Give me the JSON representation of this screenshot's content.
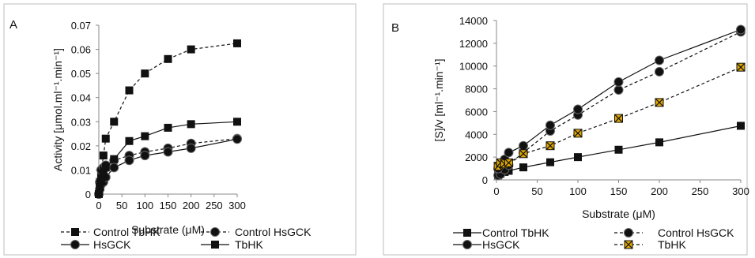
{
  "chart_data": [
    {
      "panel_label": "A",
      "type": "line",
      "xlabel": "Substrate (μM)",
      "ylabel": "Activity [μmol.ml⁻¹.min⁻¹]",
      "xlim": [
        0,
        300
      ],
      "ylim": [
        0,
        0.07
      ],
      "xticks": [
        "0",
        "50",
        "100",
        "150",
        "200",
        "250",
        "300"
      ],
      "yticks": [
        "0",
        "0.01",
        "0.02",
        "0.03",
        "0.04",
        "0.05",
        "0.06",
        "0.07"
      ],
      "grid": false,
      "legend": "bottom",
      "series": [
        {
          "name": "Control TbHK",
          "marker": "square",
          "line": "dashed",
          "color": "#111111",
          "x": [
            0,
            2,
            5,
            10,
            15,
            33,
            66,
            100,
            150,
            200,
            300
          ],
          "y": [
            0,
            0.005,
            0.009,
            0.016,
            0.023,
            0.03,
            0.043,
            0.05,
            0.056,
            0.06,
            0.0625
          ]
        },
        {
          "name": "Control HsGCK",
          "marker": "circle",
          "line": "dashed",
          "color": "#111111",
          "x": [
            0,
            2,
            5,
            10,
            15,
            33,
            66,
            100,
            150,
            200,
            300
          ],
          "y": [
            0,
            0.005,
            0.01,
            0.011,
            0.012,
            0.014,
            0.016,
            0.0175,
            0.019,
            0.021,
            0.023
          ]
        },
        {
          "name": "HsGCK",
          "marker": "circle",
          "line": "solid",
          "color": "#111111",
          "x": [
            0,
            2,
            5,
            10,
            15,
            33,
            66,
            100,
            150,
            200,
            300
          ],
          "y": [
            0,
            0.002,
            0.004,
            0.005,
            0.007,
            0.011,
            0.014,
            0.016,
            0.0175,
            0.019,
            0.0228
          ]
        },
        {
          "name": "TbHK",
          "marker": "square",
          "line": "solid",
          "color": "#111111",
          "x": [
            0,
            2,
            5,
            10,
            15,
            33,
            66,
            100,
            150,
            200,
            300
          ],
          "y": [
            0,
            0.003,
            0.006,
            0.009,
            0.011,
            0.0145,
            0.022,
            0.024,
            0.0275,
            0.029,
            0.03
          ]
        }
      ]
    },
    {
      "panel_label": "B",
      "type": "line",
      "xlabel": "Substrate (μM)",
      "ylabel": "[S]/v [ml⁻¹.min⁻¹]",
      "xlim": [
        0,
        300
      ],
      "ylim": [
        0,
        14000
      ],
      "xticks": [
        "0",
        "50",
        "100",
        "150",
        "200",
        "250",
        "300"
      ],
      "yticks": [
        "0",
        "2000",
        "4000",
        "6000",
        "8000",
        "10000",
        "12000",
        "14000"
      ],
      "grid": false,
      "legend": "bottom",
      "series": [
        {
          "name": "Control TbHK",
          "marker": "square",
          "line": "solid",
          "color": "#111111",
          "x": [
            2,
            5,
            10,
            15,
            33,
            66,
            100,
            150,
            200,
            300
          ],
          "y": [
            400,
            550,
            700,
            800,
            1100,
            1550,
            2000,
            2650,
            3300,
            4750
          ]
        },
        {
          "name": "Control HsGCK",
          "marker": "circle",
          "line": "dashed",
          "color": "#111111",
          "x": [
            2,
            5,
            10,
            15,
            33,
            66,
            100,
            150,
            200,
            300
          ],
          "y": [
            400,
            500,
            900,
            1300,
            2400,
            4300,
            5700,
            7900,
            9500,
            13000
          ]
        },
        {
          "name": "HsGCK",
          "marker": "circle",
          "line": "solid",
          "color": "#111111",
          "x": [
            2,
            5,
            10,
            15,
            33,
            66,
            100,
            150,
            200,
            300
          ],
          "y": [
            1000,
            1300,
            1800,
            2400,
            3000,
            4800,
            6200,
            8600,
            10500,
            13200
          ]
        },
        {
          "name": "TbHK",
          "marker": "xbox",
          "line": "dashed",
          "color": "#e0a800",
          "x": [
            2,
            5,
            10,
            15,
            33,
            66,
            100,
            150,
            200,
            300
          ],
          "y": [
            1200,
            1500,
            1400,
            1500,
            2300,
            3000,
            4100,
            5400,
            6800,
            9900
          ]
        }
      ]
    }
  ]
}
